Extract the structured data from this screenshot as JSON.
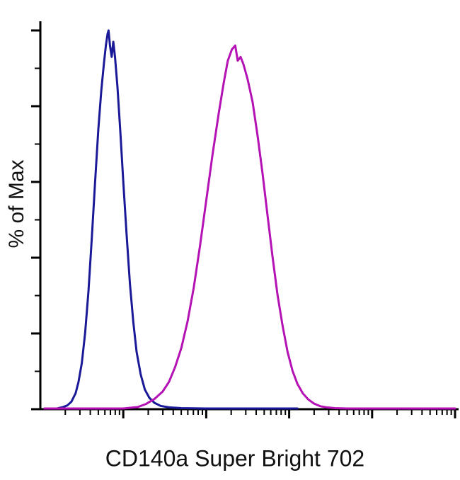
{
  "figure": {
    "background": "#ffffff",
    "axis_color": "#000000"
  },
  "chart_data": {
    "type": "line",
    "subtype": "flow-cytometry-histogram-overlay",
    "title": "",
    "xlabel": "CD140a Super Bright 702",
    "ylabel": "% of Max",
    "x_axis": {
      "scale": "log",
      "decades": 5,
      "tick_labels": [],
      "x_unit": "fraction-of-axis-width"
    },
    "y_axis": {
      "scale": "linear",
      "range": [
        0,
        100
      ],
      "major_ticks": [
        0,
        20,
        40,
        60,
        80,
        100
      ],
      "minor_ticks": [
        10,
        30,
        50,
        70,
        90
      ],
      "tick_labels": []
    },
    "legend": "none",
    "grid": false,
    "series": [
      {
        "name": "blue-histogram",
        "color": "#1a1a99",
        "peak_fraction": 0.165,
        "peak_percent_of_max": 100,
        "points": [
          [
            0.01,
            0
          ],
          [
            0.04,
            0
          ],
          [
            0.055,
            0.4
          ],
          [
            0.065,
            0.8
          ],
          [
            0.075,
            1.8
          ],
          [
            0.085,
            4
          ],
          [
            0.092,
            7
          ],
          [
            0.1,
            12
          ],
          [
            0.108,
            20
          ],
          [
            0.116,
            31
          ],
          [
            0.124,
            45
          ],
          [
            0.132,
            60
          ],
          [
            0.14,
            74
          ],
          [
            0.147,
            84
          ],
          [
            0.153,
            91
          ],
          [
            0.158,
            96
          ],
          [
            0.162,
            99
          ],
          [
            0.1645,
            100
          ],
          [
            0.168,
            96
          ],
          [
            0.172,
            93
          ],
          [
            0.176,
            97
          ],
          [
            0.18,
            93
          ],
          [
            0.186,
            85
          ],
          [
            0.193,
            73
          ],
          [
            0.2,
            60
          ],
          [
            0.208,
            46
          ],
          [
            0.216,
            33
          ],
          [
            0.224,
            23
          ],
          [
            0.232,
            15
          ],
          [
            0.242,
            9
          ],
          [
            0.252,
            5
          ],
          [
            0.263,
            2.8
          ],
          [
            0.275,
            1.5
          ],
          [
            0.29,
            0.7
          ],
          [
            0.31,
            0.3
          ],
          [
            0.34,
            0.1
          ],
          [
            0.4,
            0
          ],
          [
            0.62,
            0
          ]
        ]
      },
      {
        "name": "magenta-histogram",
        "color": "#b412b4",
        "peak_fraction": 0.47,
        "peak_percent_of_max": 96,
        "points": [
          [
            0.01,
            0
          ],
          [
            0.2,
            0
          ],
          [
            0.235,
            0.4
          ],
          [
            0.255,
            1.2
          ],
          [
            0.275,
            2.5
          ],
          [
            0.295,
            4.5
          ],
          [
            0.31,
            7
          ],
          [
            0.325,
            11
          ],
          [
            0.34,
            16
          ],
          [
            0.355,
            23
          ],
          [
            0.37,
            32
          ],
          [
            0.385,
            43
          ],
          [
            0.4,
            55
          ],
          [
            0.415,
            67
          ],
          [
            0.43,
            78
          ],
          [
            0.442,
            86
          ],
          [
            0.452,
            92
          ],
          [
            0.462,
            95
          ],
          [
            0.47,
            96
          ],
          [
            0.476,
            92
          ],
          [
            0.483,
            93
          ],
          [
            0.49,
            91
          ],
          [
            0.5,
            87
          ],
          [
            0.512,
            81
          ],
          [
            0.524,
            72
          ],
          [
            0.536,
            62
          ],
          [
            0.548,
            51
          ],
          [
            0.56,
            40
          ],
          [
            0.572,
            30
          ],
          [
            0.584,
            22
          ],
          [
            0.596,
            15
          ],
          [
            0.608,
            10
          ],
          [
            0.62,
            6.5
          ],
          [
            0.633,
            4
          ],
          [
            0.646,
            2.4
          ],
          [
            0.66,
            1.3
          ],
          [
            0.675,
            0.6
          ],
          [
            0.69,
            0.3
          ],
          [
            0.71,
            0.1
          ],
          [
            0.74,
            0
          ],
          [
            1.0,
            0
          ]
        ]
      }
    ]
  }
}
